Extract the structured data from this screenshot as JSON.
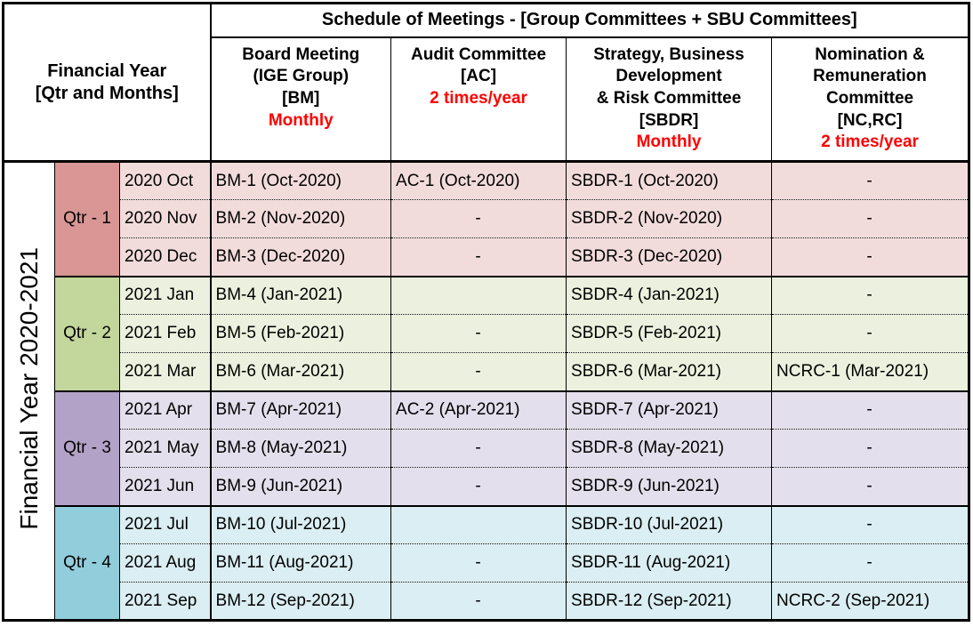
{
  "colors": {
    "red": "#FF0000",
    "border": "#000000"
  },
  "header": {
    "left_title": "Financial Year\n[Qtr and Months]",
    "title": "Schedule of Meetings - [Group Committees + SBU Committees]",
    "committees": [
      {
        "name": "Board Meeting\n(IGE Group)\n[BM]",
        "frequency": "Monthly"
      },
      {
        "name": "Audit Committee\n[AC]",
        "frequency": "2 times/year"
      },
      {
        "name": "Strategy, Business\nDevelopment\n& Risk Committee\n[SBDR]",
        "frequency": "Monthly"
      },
      {
        "name": "Nomination &\nRemuneration\nCommittee\n[NC,RC]",
        "frequency": "2 times/year"
      }
    ]
  },
  "fy_label": "Financial Year 2020-2021",
  "quarters": [
    {
      "label": "Qtr - 1",
      "color": "#D99694",
      "tint": "#F2DCDB",
      "rows": [
        {
          "month": "2020 Oct",
          "bm": "BM-1 (Oct-2020)",
          "ac": "AC-1 (Oct-2020)",
          "sbdr": "SBDR-1 (Oct-2020)",
          "ncrc": "-"
        },
        {
          "month": "2020 Nov",
          "bm": "BM-2 (Nov-2020)",
          "ac": "-",
          "sbdr": "SBDR-2 (Nov-2020)",
          "ncrc": "-"
        },
        {
          "month": "2020 Dec",
          "bm": "BM-3 (Dec-2020)",
          "ac": "-",
          "sbdr": "SBDR-3 (Dec-2020)",
          "ncrc": "-"
        }
      ]
    },
    {
      "label": "Qtr - 2",
      "color": "#C3D69B",
      "tint": "#EBF1DE",
      "rows": [
        {
          "month": "2021 Jan",
          "bm": "BM-4 (Jan-2021)",
          "ac": "",
          "sbdr": "SBDR-4 (Jan-2021)",
          "ncrc": "-"
        },
        {
          "month": "2021 Feb",
          "bm": "BM-5 (Feb-2021)",
          "ac": "-",
          "sbdr": "SBDR-5 (Feb-2021)",
          "ncrc": "-"
        },
        {
          "month": "2021 Mar",
          "bm": "BM-6 (Mar-2021)",
          "ac": "-",
          "sbdr": "SBDR-6 (Mar-2021)",
          "ncrc": "NCRC-1 (Mar-2021)"
        }
      ]
    },
    {
      "label": "Qtr - 3",
      "color": "#B3A2C7",
      "tint": "#E4DFEC",
      "rows": [
        {
          "month": "2021 Apr",
          "bm": "BM-7 (Apr-2021)",
          "ac": "AC-2 (Apr-2021)",
          "sbdr": "SBDR-7 (Apr-2021)",
          "ncrc": "-"
        },
        {
          "month": "2021 May",
          "bm": "BM-8 (May-2021)",
          "ac": "-",
          "sbdr": "SBDR-8 (May-2021)",
          "ncrc": "-"
        },
        {
          "month": "2021 Jun",
          "bm": "BM-9 (Jun-2021)",
          "ac": "-",
          "sbdr": "SBDR-9 (Jun-2021)",
          "ncrc": "-"
        }
      ]
    },
    {
      "label": "Qtr - 4",
      "color": "#92CDDC",
      "tint": "#DAEEF3",
      "rows": [
        {
          "month": "2021 Jul",
          "bm": "BM-10 (Jul-2021)",
          "ac": "",
          "sbdr": "SBDR-10 (Jul-2021)",
          "ncrc": "-"
        },
        {
          "month": "2021 Aug",
          "bm": "BM-11 (Aug-2021)",
          "ac": "-",
          "sbdr": "SBDR-11 (Aug-2021)",
          "ncrc": "-"
        },
        {
          "month": "2021 Sep",
          "bm": "BM-12 (Sep-2021)",
          "ac": "-",
          "sbdr": "SBDR-12 (Sep-2021)",
          "ncrc": "NCRC-2 (Sep-2021)"
        }
      ]
    }
  ]
}
